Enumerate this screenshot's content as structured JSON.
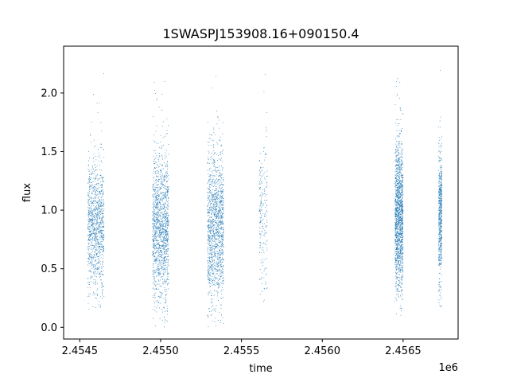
{
  "chart_data": {
    "type": "scatter",
    "title": "1SWASPJ153908.16+090150.4",
    "xlabel": "time",
    "ylabel": "flux",
    "x_offset_label": "1e6",
    "xlim": [
      2.4544,
      2.45684
    ],
    "ylim": [
      -0.1,
      2.4
    ],
    "x_ticks": [
      2.4545,
      2.455,
      2.4555,
      2.456,
      2.4565
    ],
    "x_tick_labels": [
      "2.4545",
      "2.4550",
      "2.4555",
      "2.4560",
      "2.4565"
    ],
    "y_ticks": [
      0.0,
      0.5,
      1.0,
      1.5,
      2.0
    ],
    "y_tick_labels": [
      "0.0",
      "0.5",
      "1.0",
      "1.5",
      "2.0"
    ],
    "grid": false,
    "marker_color": "#1f77b4",
    "series": [
      {
        "clusters": [
          {
            "x_start": 2.45455,
            "x_end": 2.45465,
            "center": 0.85,
            "spread": 0.28,
            "min": 0.15,
            "max": 2.25,
            "count": 1100
          },
          {
            "x_start": 2.45495,
            "x_end": 2.45505,
            "center": 0.85,
            "spread": 0.32,
            "min": 0.0,
            "max": 2.25,
            "count": 1400
          },
          {
            "x_start": 2.45529,
            "x_end": 2.45539,
            "center": 0.85,
            "spread": 0.33,
            "min": 0.0,
            "max": 2.2,
            "count": 1400
          },
          {
            "x_start": 2.45561,
            "x_end": 2.45566,
            "center": 0.95,
            "spread": 0.35,
            "min": 0.2,
            "max": 2.3,
            "count": 220
          },
          {
            "x_start": 2.45645,
            "x_end": 2.4565,
            "center": 0.95,
            "spread": 0.32,
            "min": 0.1,
            "max": 2.28,
            "count": 1500
          },
          {
            "x_start": 2.45672,
            "x_end": 2.45674,
            "center": 0.95,
            "spread": 0.28,
            "min": 0.1,
            "max": 2.25,
            "count": 600
          }
        ]
      }
    ]
  }
}
